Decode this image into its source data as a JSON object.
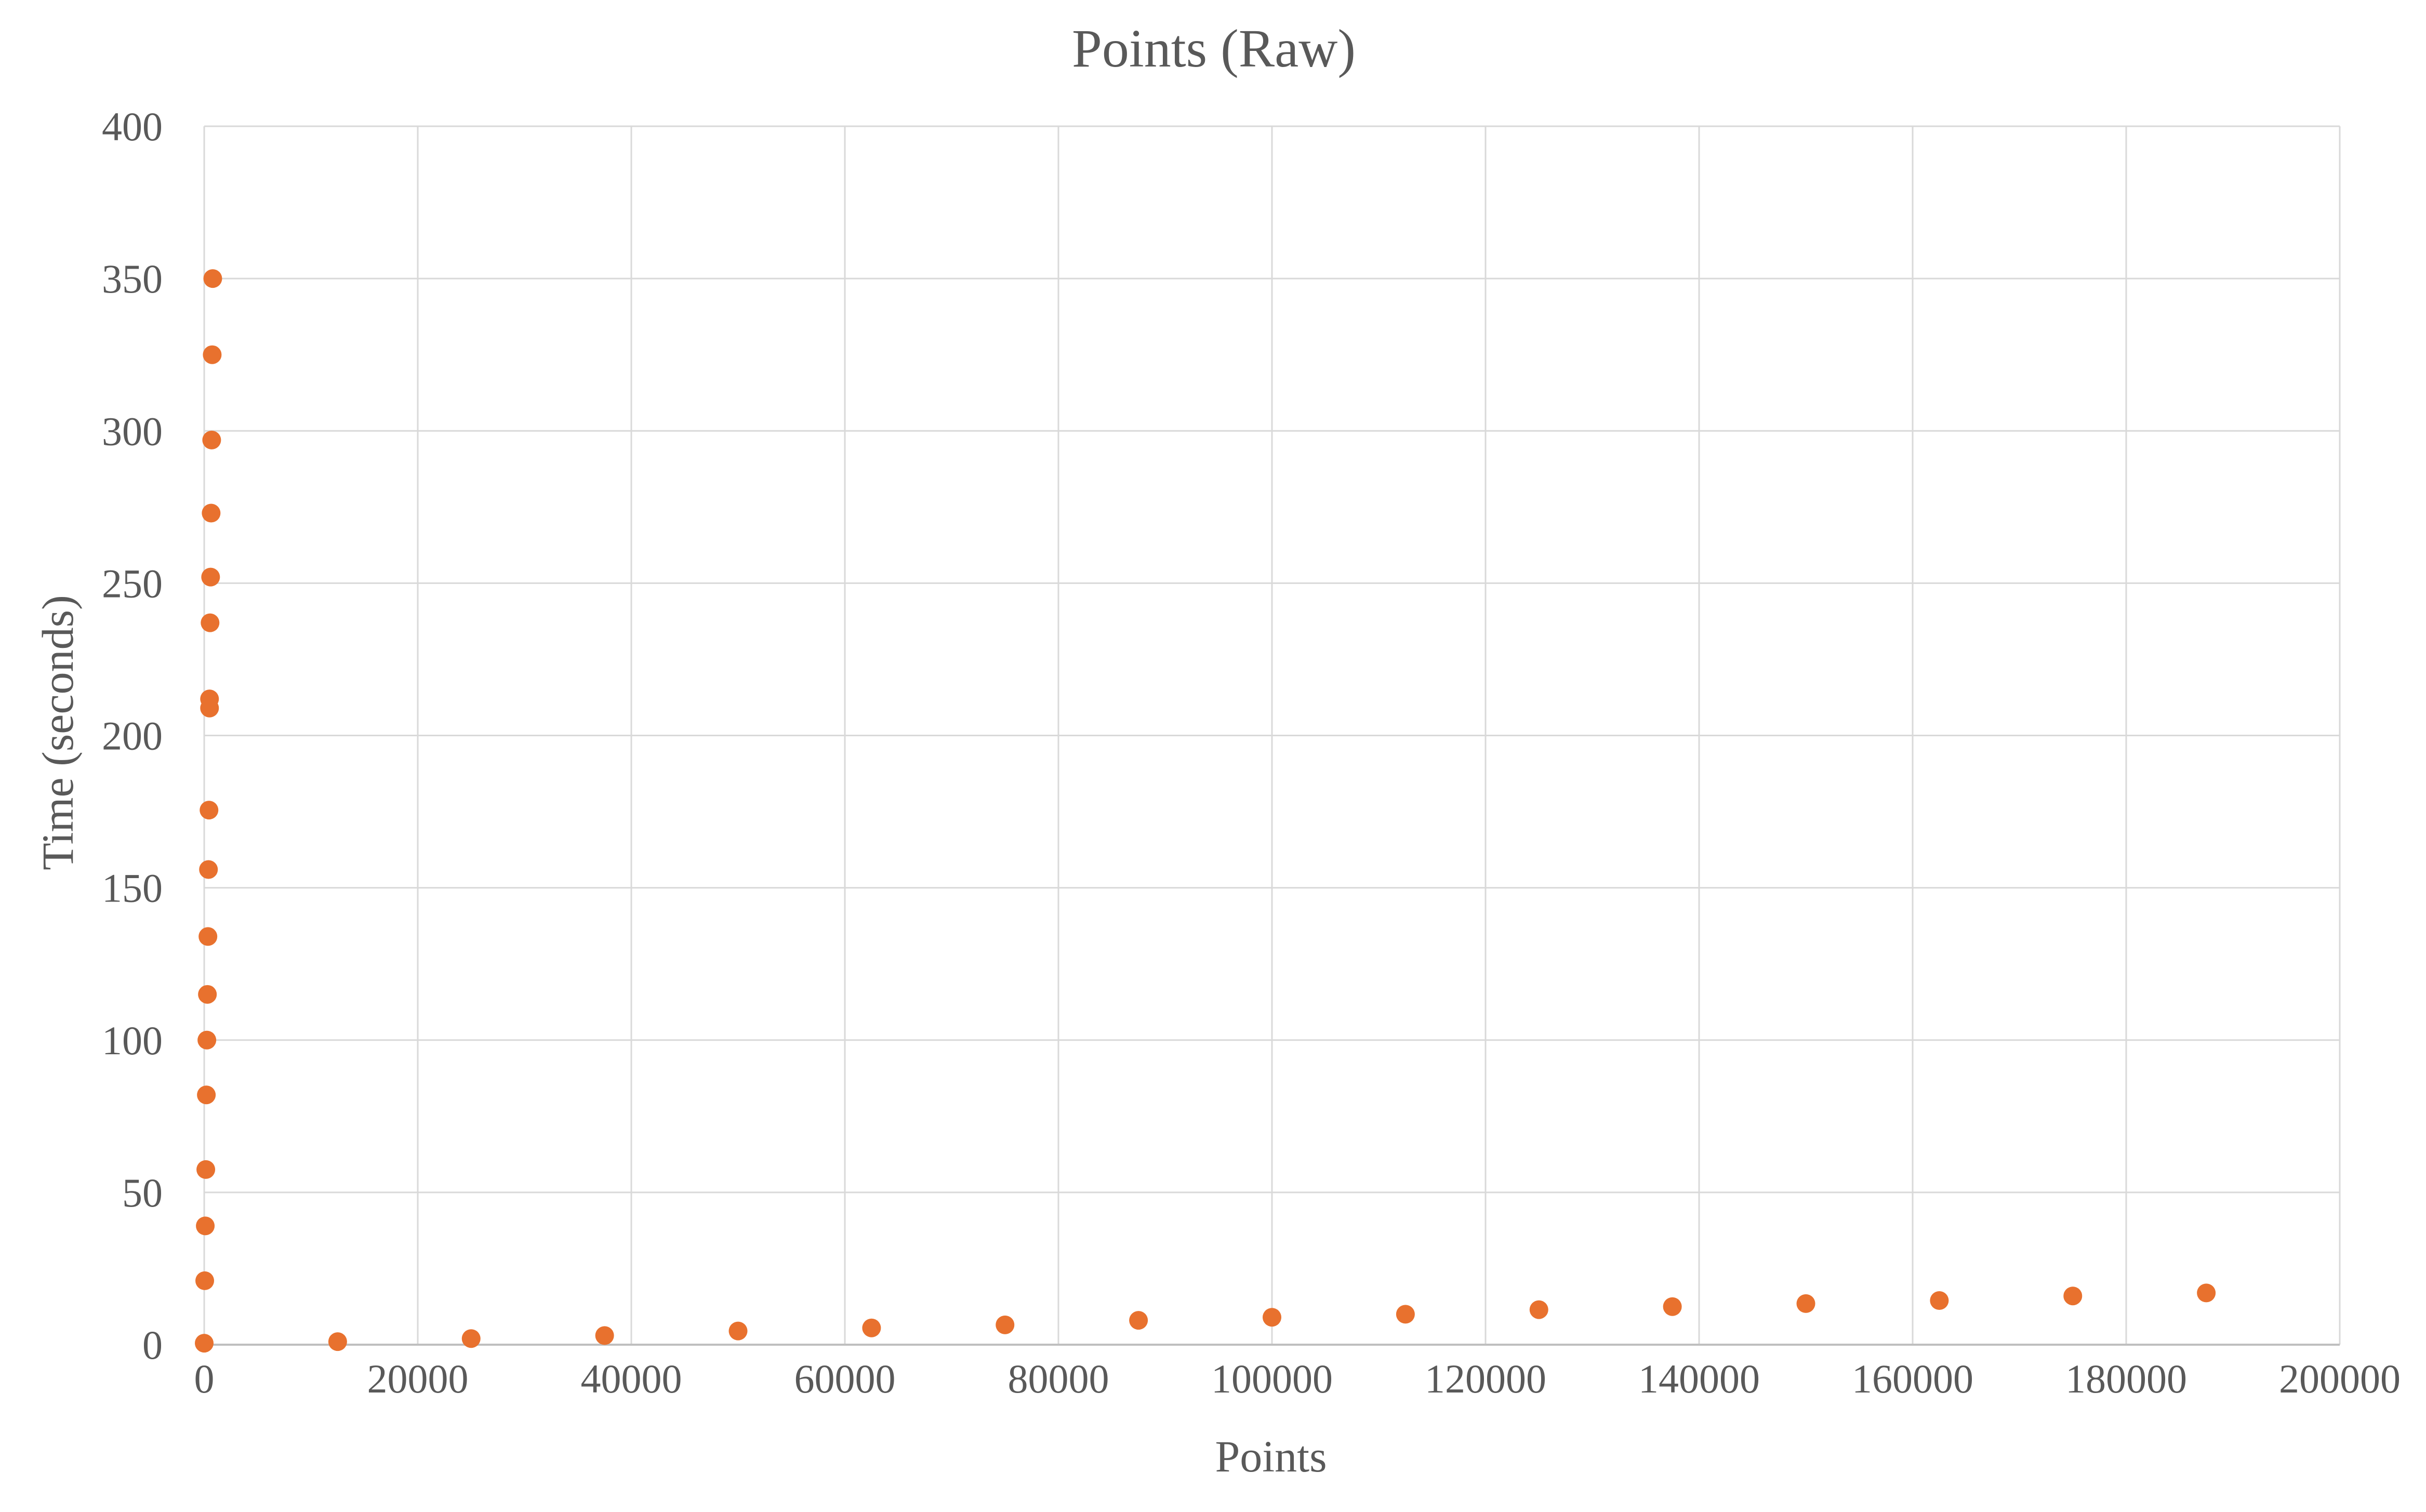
{
  "chart_data": {
    "type": "scatter",
    "title": "Points (Raw)",
    "xlabel": "Points",
    "ylabel": "Time (seconds)",
    "xlim": [
      0,
      200000
    ],
    "ylim": [
      0,
      400
    ],
    "xticks": [
      "0",
      "20000",
      "40000",
      "60000",
      "80000",
      "100000",
      "120000",
      "140000",
      "160000",
      "180000",
      "200000"
    ],
    "yticks": [
      "0",
      "50",
      "100",
      "150",
      "200",
      "250",
      "300",
      "350",
      "400"
    ],
    "grid": true,
    "legend": "none",
    "marker_color": "#E8712E",
    "series": [
      {
        "points": [
          {
            "x": 0,
            "y": 0.5
          },
          {
            "x": 50,
            "y": 21
          },
          {
            "x": 100,
            "y": 39
          },
          {
            "x": 150,
            "y": 57.5
          },
          {
            "x": 200,
            "y": 82
          },
          {
            "x": 250,
            "y": 100
          },
          {
            "x": 300,
            "y": 115
          },
          {
            "x": 350,
            "y": 134
          },
          {
            "x": 400,
            "y": 156
          },
          {
            "x": 450,
            "y": 175.5
          },
          {
            "x": 500,
            "y": 209
          },
          {
            "x": 500,
            "y": 212
          },
          {
            "x": 550,
            "y": 237
          },
          {
            "x": 600,
            "y": 252
          },
          {
            "x": 650,
            "y": 273
          },
          {
            "x": 700,
            "y": 297
          },
          {
            "x": 750,
            "y": 325
          },
          {
            "x": 800,
            "y": 350
          },
          {
            "x": 12500,
            "y": 1
          },
          {
            "x": 25000,
            "y": 2
          },
          {
            "x": 37500,
            "y": 3
          },
          {
            "x": 50000,
            "y": 4.5
          },
          {
            "x": 62500,
            "y": 5.5
          },
          {
            "x": 75000,
            "y": 6.5
          },
          {
            "x": 87500,
            "y": 8
          },
          {
            "x": 100000,
            "y": 9
          },
          {
            "x": 112500,
            "y": 10
          },
          {
            "x": 125000,
            "y": 11.5
          },
          {
            "x": 137500,
            "y": 12.5
          },
          {
            "x": 150000,
            "y": 13.5
          },
          {
            "x": 162500,
            "y": 14.5
          },
          {
            "x": 175000,
            "y": 16
          },
          {
            "x": 187500,
            "y": 17
          }
        ]
      }
    ]
  }
}
